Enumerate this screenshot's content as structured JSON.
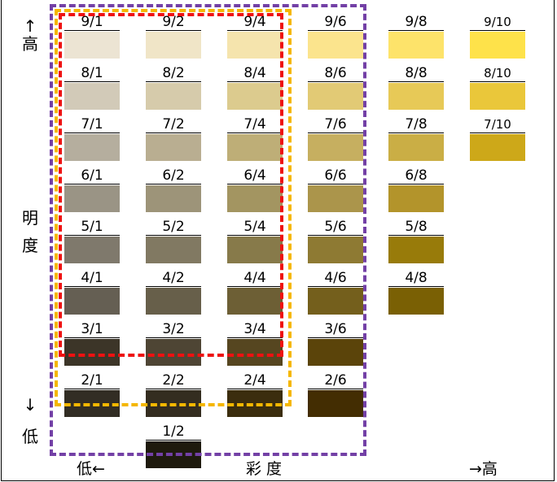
{
  "axis": {
    "value_arrow_up": "↑",
    "value_high": "高",
    "value_char1": "明",
    "value_char2": "度",
    "value_arrow_down": "↓",
    "value_low": "低",
    "chroma_low": "低←",
    "chroma_title": "彩 度",
    "chroma_high": "→高"
  },
  "highlight_colors": {
    "outer": "#7340a6",
    "middle": "#f5b700",
    "inner": "#ee1111"
  },
  "chips": [
    {
      "label": "9/1",
      "value": 9,
      "chroma": 1,
      "color": "#ece4d3"
    },
    {
      "label": "9/2",
      "value": 9,
      "chroma": 2,
      "color": "#f0e5c7"
    },
    {
      "label": "9/4",
      "value": 9,
      "chroma": 4,
      "color": "#f5e4ad"
    },
    {
      "label": "9/6",
      "value": 9,
      "chroma": 6,
      "color": "#fbe48d"
    },
    {
      "label": "9/8",
      "value": 9,
      "chroma": 8,
      "color": "#fde36a"
    },
    {
      "label": "9/10",
      "value": 9,
      "chroma": 10,
      "color": "#fee24a"
    },
    {
      "label": "8/1",
      "value": 8,
      "chroma": 1,
      "color": "#d2cab8"
    },
    {
      "label": "8/2",
      "value": 8,
      "chroma": 2,
      "color": "#d6cbab"
    },
    {
      "label": "8/4",
      "value": 8,
      "chroma": 4,
      "color": "#dccb8e"
    },
    {
      "label": "8/6",
      "value": 8,
      "chroma": 6,
      "color": "#e2ca75"
    },
    {
      "label": "8/8",
      "value": 8,
      "chroma": 8,
      "color": "#e7c957"
    },
    {
      "label": "8/10",
      "value": 8,
      "chroma": 10,
      "color": "#eac73a"
    },
    {
      "label": "7/1",
      "value": 7,
      "chroma": 1,
      "color": "#b5ae9e"
    },
    {
      "label": "7/2",
      "value": 7,
      "chroma": 2,
      "color": "#b9ae91"
    },
    {
      "label": "7/4",
      "value": 7,
      "chroma": 4,
      "color": "#beae77"
    },
    {
      "label": "7/6",
      "value": 7,
      "chroma": 6,
      "color": "#c6af60"
    },
    {
      "label": "7/8",
      "value": 7,
      "chroma": 8,
      "color": "#caae45"
    },
    {
      "label": "7/10",
      "value": 7,
      "chroma": 10,
      "color": "#cda819"
    },
    {
      "label": "6/1",
      "value": 6,
      "chroma": 1,
      "color": "#9a9485"
    },
    {
      "label": "6/2",
      "value": 6,
      "chroma": 2,
      "color": "#9d9479"
    },
    {
      "label": "6/4",
      "value": 6,
      "chroma": 4,
      "color": "#a39561"
    },
    {
      "label": "6/6",
      "value": 6,
      "chroma": 6,
      "color": "#ab954b"
    },
    {
      "label": "6/8",
      "value": 6,
      "chroma": 8,
      "color": "#b3942b"
    },
    {
      "label": "5/1",
      "value": 5,
      "chroma": 1,
      "color": "#7f796c"
    },
    {
      "label": "5/2",
      "value": 5,
      "chroma": 2,
      "color": "#817962"
    },
    {
      "label": "5/4",
      "value": 5,
      "chroma": 4,
      "color": "#877a4a"
    },
    {
      "label": "5/6",
      "value": 5,
      "chroma": 6,
      "color": "#8e7a33"
    },
    {
      "label": "5/8",
      "value": 5,
      "chroma": 8,
      "color": "#987b0a"
    },
    {
      "label": "4/1",
      "value": 4,
      "chroma": 1,
      "color": "#655f53"
    },
    {
      "label": "4/2",
      "value": 4,
      "chroma": 2,
      "color": "#675f4a"
    },
    {
      "label": "4/4",
      "value": 4,
      "chroma": 4,
      "color": "#6d5f35"
    },
    {
      "label": "4/6",
      "value": 4,
      "chroma": 6,
      "color": "#745f1c"
    },
    {
      "label": "4/8",
      "value": 4,
      "chroma": 8,
      "color": "#7a6004"
    },
    {
      "label": "3/1",
      "value": 3,
      "chroma": 1,
      "color": "#3c3528"
    },
    {
      "label": "3/2",
      "value": 3,
      "chroma": 2,
      "color": "#4e4534"
    },
    {
      "label": "3/4",
      "value": 3,
      "chroma": 4,
      "color": "#564620"
    },
    {
      "label": "3/6",
      "value": 3,
      "chroma": 6,
      "color": "#5b440a"
    },
    {
      "label": "2/1",
      "value": 2,
      "chroma": 1,
      "color": "#322d24"
    },
    {
      "label": "2/2",
      "value": 2,
      "chroma": 2,
      "color": "#342d20"
    },
    {
      "label": "2/4",
      "value": 2,
      "chroma": 4,
      "color": "#3b2d0e"
    },
    {
      "label": "2/6",
      "value": 2,
      "chroma": 6,
      "color": "#432d02"
    },
    {
      "label": "1/2",
      "value": 1,
      "chroma": 2,
      "color": "#1e1a0d"
    }
  ]
}
